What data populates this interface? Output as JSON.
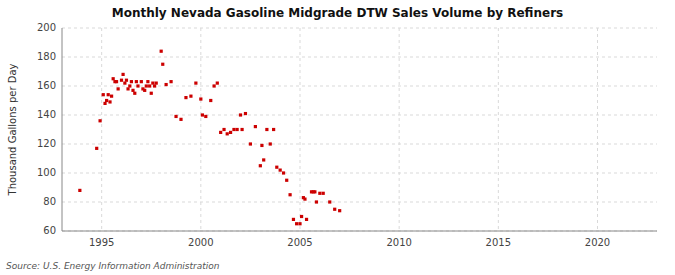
{
  "chart_data": {
    "type": "scatter",
    "title": "Monthly Nevada Gasoline Midgrade DTW Sales Volume by Refiners",
    "ylabel": "Thousand Gallons per Day",
    "annotations": [
      "Source: U.S. Energy Information Administration"
    ],
    "xlim": [
      1993.0,
      2023.0
    ],
    "ylim": [
      60,
      200
    ],
    "xticks": [
      1995,
      2000,
      2005,
      2010,
      2015,
      2020
    ],
    "yticks": [
      60,
      80,
      100,
      120,
      140,
      160,
      180,
      200
    ],
    "grid": true,
    "color": "#cc0000",
    "marker": "square",
    "x": [
      1993.9,
      1994.75,
      1994.92,
      1995.08,
      1995.17,
      1995.25,
      1995.33,
      1995.42,
      1995.5,
      1995.58,
      1995.67,
      1995.75,
      1995.83,
      1996.0,
      1996.08,
      1996.17,
      1996.25,
      1996.33,
      1996.42,
      1996.5,
      1996.58,
      1996.67,
      1996.75,
      1996.83,
      1997.0,
      1997.08,
      1997.17,
      1997.25,
      1997.33,
      1997.42,
      1997.5,
      1997.58,
      1997.67,
      1997.75,
      1998.0,
      1998.08,
      1998.25,
      1998.5,
      1998.75,
      1999.0,
      1999.25,
      1999.5,
      1999.75,
      2000.0,
      2000.08,
      2000.25,
      2000.5,
      2000.67,
      2000.83,
      2001.0,
      2001.17,
      2001.33,
      2001.5,
      2001.67,
      2001.83,
      2002.0,
      2002.08,
      2002.25,
      2002.5,
      2002.75,
      2003.0,
      2003.08,
      2003.17,
      2003.33,
      2003.5,
      2003.67,
      2003.83,
      2004.0,
      2004.17,
      2004.33,
      2004.5,
      2004.67,
      2004.83,
      2005.0,
      2005.08,
      2005.17,
      2005.25,
      2005.33,
      2005.58,
      2005.67,
      2005.75,
      2005.83,
      2006.0,
      2006.17,
      2006.5,
      2006.75,
      2007.0
    ],
    "values": [
      88,
      117,
      136,
      154,
      148,
      150,
      154,
      149,
      153,
      165,
      163,
      163,
      158,
      164,
      168,
      162,
      164,
      158,
      160,
      163,
      157,
      155,
      163,
      160,
      163,
      158,
      157,
      160,
      163,
      160,
      155,
      162,
      160,
      162,
      184,
      175,
      161,
      163,
      139,
      137,
      152,
      153,
      162,
      151,
      140,
      139,
      150,
      160,
      162,
      128,
      130,
      127,
      128,
      130,
      130,
      140,
      130,
      141,
      120,
      132,
      105,
      119,
      109,
      130,
      120,
      130,
      104,
      102,
      100,
      95,
      85,
      68,
      65,
      65,
      70,
      83,
      82,
      68,
      87,
      87,
      87,
      80,
      86,
      86,
      80,
      75,
      74
    ]
  }
}
